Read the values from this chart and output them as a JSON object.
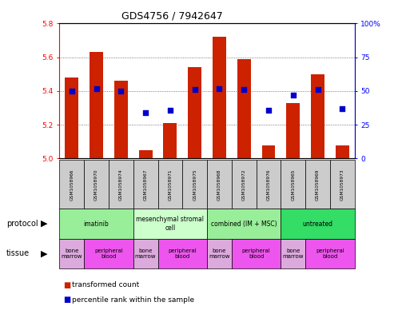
{
  "title": "GDS4756 / 7942647",
  "samples": [
    "GSM1058966",
    "GSM1058970",
    "GSM1058974",
    "GSM1058967",
    "GSM1058971",
    "GSM1058975",
    "GSM1058968",
    "GSM1058972",
    "GSM1058976",
    "GSM1058965",
    "GSM1058969",
    "GSM1058973"
  ],
  "transformed_count": [
    5.48,
    5.63,
    5.46,
    5.05,
    5.21,
    5.54,
    5.72,
    5.59,
    5.08,
    5.33,
    5.5,
    5.08
  ],
  "percentile_rank": [
    50,
    52,
    50,
    34,
    36,
    51,
    52,
    51,
    36,
    47,
    51,
    37
  ],
  "ylim_left": [
    5.0,
    5.8
  ],
  "ylim_right": [
    0,
    100
  ],
  "yticks_left": [
    5.0,
    5.2,
    5.4,
    5.6,
    5.8
  ],
  "yticks_right": [
    0,
    25,
    50,
    75,
    100
  ],
  "ytick_labels_right": [
    "0",
    "25",
    "50",
    "75",
    "100%"
  ],
  "bar_color": "#cc2200",
  "dot_color": "#0000cc",
  "bar_bottom": 5.0,
  "protocols": [
    {
      "label": "imatinib",
      "start": 0,
      "end": 3,
      "color": "#99ee99"
    },
    {
      "label": "mesenchymal stromal\ncell",
      "start": 3,
      "end": 6,
      "color": "#ccffcc"
    },
    {
      "label": "combined (IM + MSC)",
      "start": 6,
      "end": 9,
      "color": "#99ee99"
    },
    {
      "label": "untreated",
      "start": 9,
      "end": 12,
      "color": "#33dd66"
    }
  ],
  "tissues": [
    {
      "label": "bone\nmarrow",
      "start": 0,
      "end": 1,
      "color": "#ddaadd"
    },
    {
      "label": "peripheral\nblood",
      "start": 1,
      "end": 3,
      "color": "#ee55ee"
    },
    {
      "label": "bone\nmarrow",
      "start": 3,
      "end": 4,
      "color": "#ddaadd"
    },
    {
      "label": "peripheral\nblood",
      "start": 4,
      "end": 6,
      "color": "#ee55ee"
    },
    {
      "label": "bone\nmarrow",
      "start": 6,
      "end": 7,
      "color": "#ddaadd"
    },
    {
      "label": "peripheral\nblood",
      "start": 7,
      "end": 9,
      "color": "#ee55ee"
    },
    {
      "label": "bone\nmarrow",
      "start": 9,
      "end": 10,
      "color": "#ddaadd"
    },
    {
      "label": "peripheral\nblood",
      "start": 10,
      "end": 12,
      "color": "#ee55ee"
    }
  ],
  "legend_items": [
    {
      "label": "transformed count",
      "color": "#cc2200"
    },
    {
      "label": "percentile rank within the sample",
      "color": "#0000cc"
    }
  ],
  "grid_color": "#555555",
  "background_color": "#ffffff",
  "title_fontsize": 9
}
